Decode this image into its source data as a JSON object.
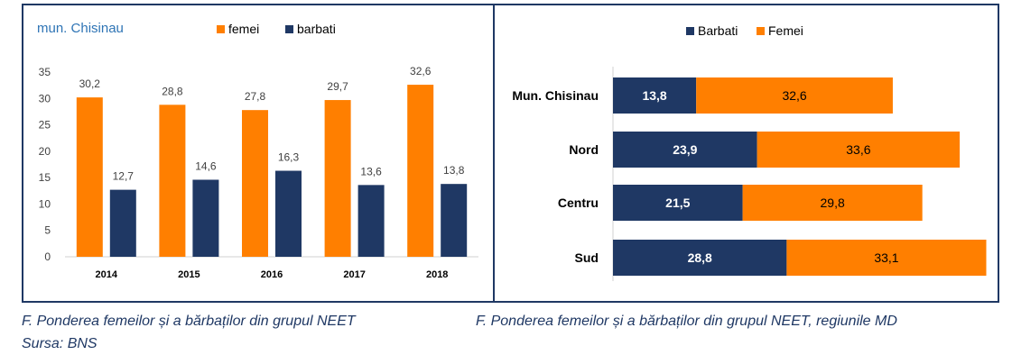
{
  "colors": {
    "femei": "#ff7f00",
    "barbati": "#1f3864",
    "frame": "#1f3864",
    "caption": "#1f3864"
  },
  "chart_data": [
    {
      "type": "bar",
      "title": "mun. Chisinau",
      "categories": [
        "2014",
        "2015",
        "2016",
        "2017",
        "2018"
      ],
      "series": [
        {
          "name": "femei",
          "values": [
            30.2,
            28.8,
            27.8,
            29.7,
            32.6
          ],
          "labels": [
            "30,2",
            "28,8",
            "27,8",
            "29,7",
            "32,6"
          ]
        },
        {
          "name": "barbati",
          "values": [
            12.7,
            14.6,
            16.3,
            13.6,
            13.8
          ],
          "labels": [
            "12,7",
            "14,6",
            "16,3",
            "13,6",
            "13,8"
          ]
        }
      ],
      "ylim": [
        0,
        35
      ],
      "yticks": [
        "0",
        "5",
        "10",
        "15",
        "20",
        "25",
        "30",
        "35"
      ],
      "legend": "top-right",
      "xlabel": "",
      "ylabel": ""
    },
    {
      "type": "bar",
      "orientation": "horizontal",
      "stacked": true,
      "categories": [
        "Mun. Chisinau",
        "Nord",
        "Centru",
        "Sud"
      ],
      "series": [
        {
          "name": "Barbati",
          "values": [
            13.8,
            23.9,
            21.5,
            28.8
          ],
          "labels": [
            "13,8",
            "23,9",
            "21,5",
            "28,8"
          ]
        },
        {
          "name": "Femei",
          "values": [
            32.6,
            33.6,
            29.8,
            33.1
          ],
          "labels": [
            "32,6",
            "33,6",
            "29,8",
            "33,1"
          ]
        }
      ],
      "xlim": [
        0,
        62
      ],
      "legend": "top-center"
    }
  ],
  "captions": {
    "left": "F. Ponderea femeilor și a bărbaților din grupul NEET",
    "right": "F. Ponderea femeilor și a bărbaților din grupul NEET, regiunile MD",
    "source": "Sursa: BNS"
  }
}
